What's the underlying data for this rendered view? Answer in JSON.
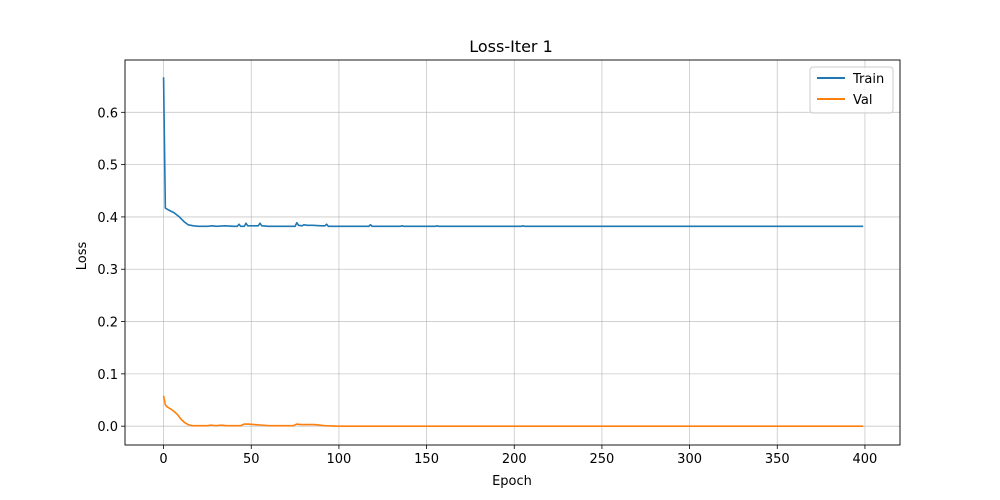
{
  "chart_data": {
    "type": "line",
    "title": "Loss-Iter 1",
    "xlabel": "Epoch",
    "ylabel": "Loss",
    "xlim": [
      -22,
      420
    ],
    "ylim": [
      -0.036,
      0.7
    ],
    "xticks": [
      0,
      50,
      100,
      150,
      200,
      250,
      300,
      350,
      400
    ],
    "yticks": [
      0.0,
      0.1,
      0.2,
      0.3,
      0.4,
      0.5,
      0.6
    ],
    "ytick_labels": [
      "0.0",
      "0.1",
      "0.2",
      "0.3",
      "0.4",
      "0.5",
      "0.6"
    ],
    "grid": true,
    "legend_position": "top-right",
    "series": [
      {
        "name": "Train",
        "color": "#1f77b4",
        "points": [
          [
            0,
            0.667
          ],
          [
            1,
            0.417
          ],
          [
            3,
            0.413
          ],
          [
            6,
            0.408
          ],
          [
            9,
            0.4
          ],
          [
            12,
            0.39
          ],
          [
            14,
            0.385
          ],
          [
            17,
            0.383
          ],
          [
            20,
            0.382
          ],
          [
            25,
            0.382
          ],
          [
            28,
            0.383
          ],
          [
            30,
            0.382
          ],
          [
            35,
            0.383
          ],
          [
            40,
            0.382
          ],
          [
            42,
            0.382
          ],
          [
            43,
            0.386
          ],
          [
            44,
            0.382
          ],
          [
            46,
            0.382
          ],
          [
            47,
            0.388
          ],
          [
            48,
            0.383
          ],
          [
            50,
            0.383
          ],
          [
            54,
            0.383
          ],
          [
            55,
            0.388
          ],
          [
            56,
            0.383
          ],
          [
            60,
            0.382
          ],
          [
            70,
            0.382
          ],
          [
            75,
            0.382
          ],
          [
            76,
            0.389
          ],
          [
            77,
            0.384
          ],
          [
            79,
            0.383
          ],
          [
            80,
            0.385
          ],
          [
            82,
            0.384
          ],
          [
            85,
            0.384
          ],
          [
            90,
            0.383
          ],
          [
            92,
            0.383
          ],
          [
            93,
            0.386
          ],
          [
            94,
            0.382
          ],
          [
            100,
            0.382
          ],
          [
            117,
            0.382
          ],
          [
            118,
            0.385
          ],
          [
            119,
            0.382
          ],
          [
            135,
            0.382
          ],
          [
            136,
            0.383
          ],
          [
            137,
            0.382
          ],
          [
            155,
            0.382
          ],
          [
            156,
            0.383
          ],
          [
            157,
            0.382
          ],
          [
            204,
            0.382
          ],
          [
            205,
            0.383
          ],
          [
            206,
            0.382
          ],
          [
            220,
            0.382
          ],
          [
            300,
            0.382
          ],
          [
            399,
            0.382
          ]
        ]
      },
      {
        "name": "Val",
        "color": "#ff7f0e",
        "points": [
          [
            0,
            0.058
          ],
          [
            1,
            0.041
          ],
          [
            2,
            0.037
          ],
          [
            4,
            0.033
          ],
          [
            6,
            0.028
          ],
          [
            8,
            0.022
          ],
          [
            10,
            0.013
          ],
          [
            12,
            0.007
          ],
          [
            14,
            0.003
          ],
          [
            16,
            0.001
          ],
          [
            20,
            0.001
          ],
          [
            25,
            0.001
          ],
          [
            27,
            0.002
          ],
          [
            30,
            0.001
          ],
          [
            33,
            0.002
          ],
          [
            36,
            0.001
          ],
          [
            40,
            0.001
          ],
          [
            44,
            0.001
          ],
          [
            46,
            0.004
          ],
          [
            48,
            0.004
          ],
          [
            52,
            0.003
          ],
          [
            56,
            0.002
          ],
          [
            60,
            0.001
          ],
          [
            70,
            0.001
          ],
          [
            74,
            0.001
          ],
          [
            76,
            0.004
          ],
          [
            78,
            0.003
          ],
          [
            82,
            0.003
          ],
          [
            86,
            0.003
          ],
          [
            92,
            0.001
          ],
          [
            100,
            0.0
          ],
          [
            150,
            0.0
          ],
          [
            200,
            0.0
          ],
          [
            300,
            0.0
          ],
          [
            399,
            0.0
          ]
        ]
      }
    ]
  }
}
